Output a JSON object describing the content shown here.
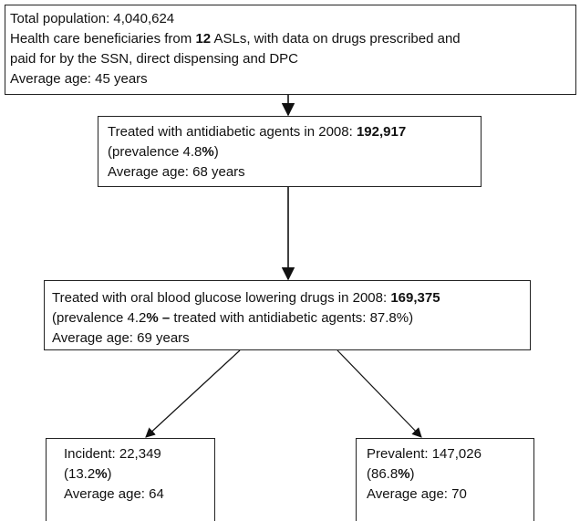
{
  "nodes": [
    {
      "lines": [
        [
          {
            "text": "Total population: 4,040,624"
          }
        ],
        [
          {
            "text": "Health care beneficiaries from "
          },
          {
            "text": "12",
            "bold": true
          },
          {
            "text": " ASLs, with data on drugs prescribed and"
          }
        ],
        [
          {
            "text": "paid for by the SSN, direct dispensing and DPC"
          }
        ],
        [
          {
            "text": "Average age: 45 years"
          }
        ]
      ]
    },
    {
      "lines": [
        [
          {
            "text": "Treated with antidiabetic agents in 2008: "
          },
          {
            "text": "192,917",
            "bold": true
          }
        ],
        [
          {
            "text": "(prevalence 4.8"
          },
          {
            "text": "%",
            "bold": true
          },
          {
            "text": ")"
          }
        ],
        [
          {
            "text": "Average age: 68 years"
          }
        ]
      ]
    },
    {
      "lines": [
        [
          {
            "text": "Treated with oral blood glucose lowering drugs in 2008: "
          },
          {
            "text": "169,375",
            "bold": true
          }
        ],
        [
          {
            "text": "(prevalence 4.2"
          },
          {
            "text": "% –",
            "bold": true
          },
          {
            "text": " treated with antidiabetic agents: 87.8%)"
          }
        ],
        [
          {
            "text": "Average age: 69 years"
          }
        ]
      ]
    },
    {
      "lines": [
        [
          {
            "text": "Incident: 22,349"
          }
        ],
        [
          {
            "text": "(13.2"
          },
          {
            "text": "%",
            "bold": true
          },
          {
            "text": ")"
          }
        ],
        [
          {
            "text": "Average age: 64"
          }
        ]
      ]
    },
    {
      "lines": [
        [
          {
            "text": "Prevalent: 147,026"
          }
        ],
        [
          {
            "text": "(86.8"
          },
          {
            "text": "%",
            "bold": true
          },
          {
            "text": ")"
          }
        ],
        [
          {
            "text": "Average age: 70"
          }
        ]
      ]
    }
  ]
}
